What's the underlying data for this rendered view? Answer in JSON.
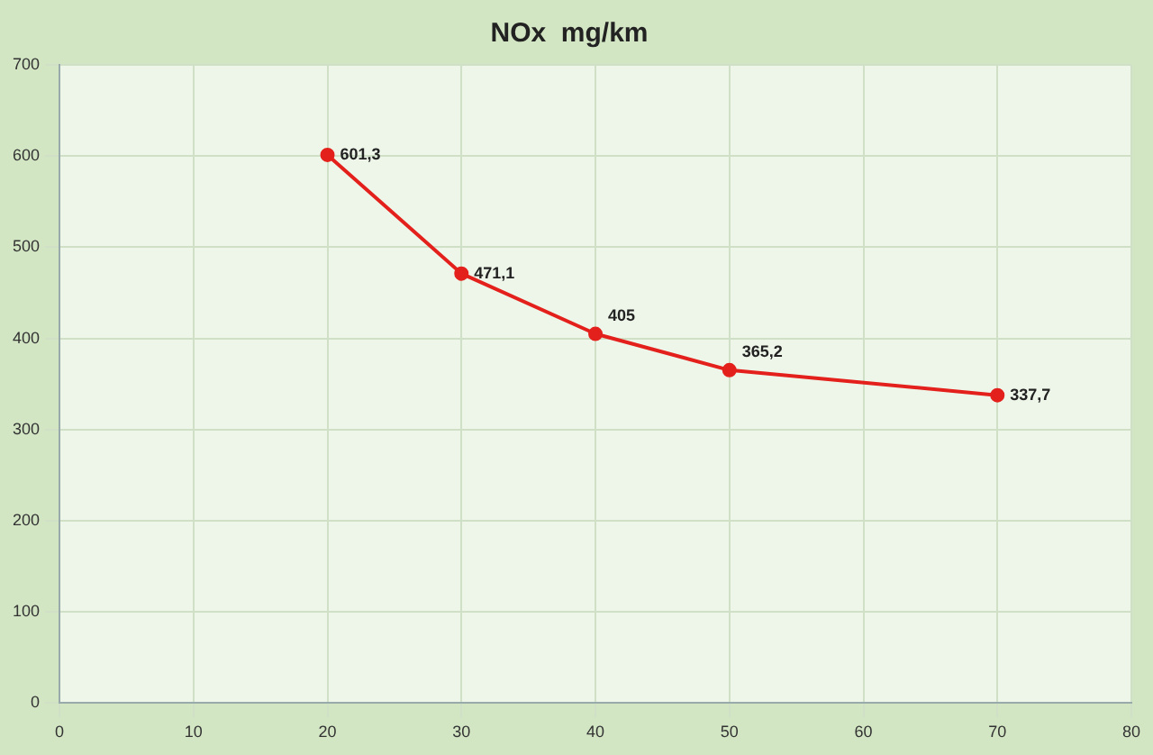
{
  "chart_data": {
    "type": "line",
    "title": "NOx  mg/km",
    "x": [
      20,
      30,
      40,
      50,
      70
    ],
    "series": [
      {
        "color": "#e3201b",
        "values": [
          601.3,
          471.1,
          405,
          365.2,
          337.7
        ],
        "value_labels": [
          "601,3",
          "471,1",
          "405",
          "365,2",
          "337,7"
        ]
      }
    ],
    "xlim": [
      0,
      80
    ],
    "xticks": [
      0,
      10,
      20,
      30,
      40,
      50,
      60,
      70,
      80
    ],
    "ylim": [
      0,
      700
    ],
    "yticks": [
      0,
      100,
      200,
      300,
      400,
      500,
      600,
      700
    ],
    "grid": true,
    "legend": false,
    "marker": "circle",
    "line_style": "solid"
  }
}
